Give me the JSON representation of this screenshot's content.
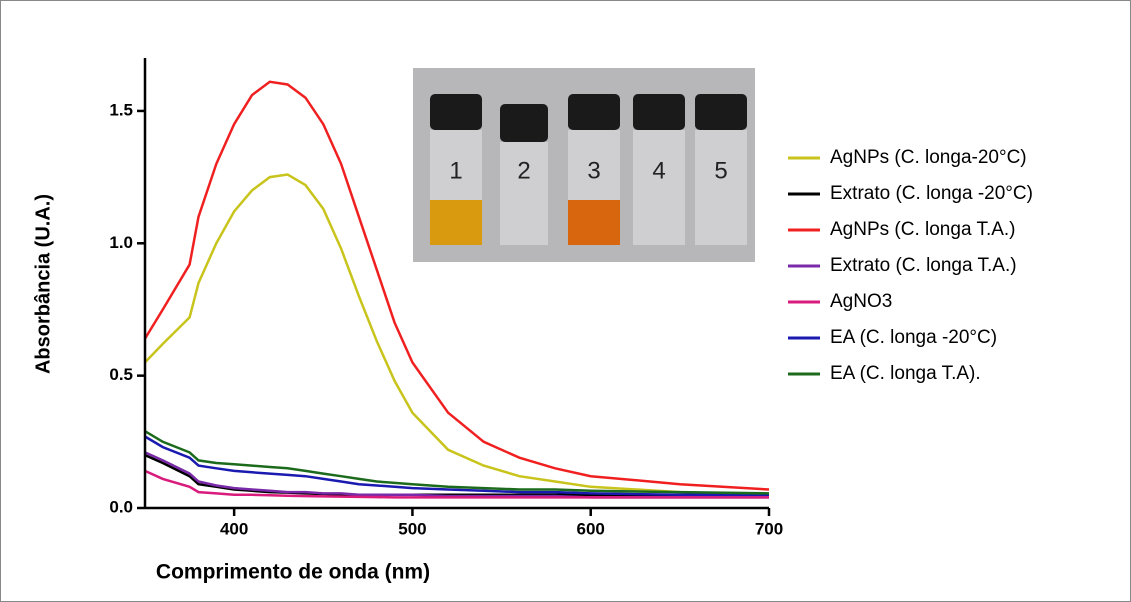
{
  "chart_data": {
    "type": "line",
    "x_label": "Comprimento de onda (nm)",
    "y_label": "Absorbância (U.A.)",
    "x": [
      350,
      360,
      375,
      380,
      390,
      400,
      410,
      420,
      430,
      440,
      450,
      460,
      470,
      480,
      490,
      500,
      520,
      540,
      560,
      580,
      600,
      650,
      700
    ],
    "series": [
      {
        "name": "AgNPs (C. longa-20°C)",
        "color": "#c8c41c",
        "values": [
          0.55,
          0.62,
          0.72,
          0.85,
          1.0,
          1.12,
          1.2,
          1.25,
          1.26,
          1.22,
          1.13,
          0.98,
          0.8,
          0.63,
          0.48,
          0.36,
          0.22,
          0.16,
          0.12,
          0.1,
          0.08,
          0.06,
          0.05
        ]
      },
      {
        "name": "Extrato (C. longa -20°C)",
        "color": "#000000",
        "values": [
          0.2,
          0.17,
          0.12,
          0.09,
          0.08,
          0.07,
          0.065,
          0.06,
          0.058,
          0.055,
          0.053,
          0.05,
          0.05,
          0.05,
          0.05,
          0.05,
          0.05,
          0.05,
          0.05,
          0.05,
          0.05,
          0.05,
          0.05
        ]
      },
      {
        "name": "AgNPs (C. longa T.A.)",
        "color": "#f02020",
        "values": [
          0.64,
          0.75,
          0.92,
          1.1,
          1.3,
          1.45,
          1.56,
          1.61,
          1.6,
          1.55,
          1.45,
          1.3,
          1.1,
          0.9,
          0.7,
          0.55,
          0.36,
          0.25,
          0.19,
          0.15,
          0.12,
          0.09,
          0.07
        ]
      },
      {
        "name": "Extrato (C. longa T.A.)",
        "color": "#7a2aa8",
        "values": [
          0.21,
          0.18,
          0.13,
          0.1,
          0.085,
          0.075,
          0.07,
          0.065,
          0.06,
          0.06,
          0.055,
          0.055,
          0.05,
          0.05,
          0.05,
          0.05,
          0.045,
          0.045,
          0.045,
          0.045,
          0.04,
          0.04,
          0.04
        ]
      },
      {
        "name": "AgNO3",
        "color": "#d81b7c",
        "values": [
          0.14,
          0.11,
          0.08,
          0.06,
          0.055,
          0.05,
          0.05,
          0.048,
          0.046,
          0.045,
          0.044,
          0.043,
          0.042,
          0.041,
          0.04,
          0.04,
          0.04,
          0.04,
          0.04,
          0.04,
          0.04,
          0.04,
          0.04
        ]
      },
      {
        "name": "EA (C. longa -20°C)",
        "color": "#1a1ab0",
        "values": [
          0.27,
          0.23,
          0.19,
          0.16,
          0.15,
          0.14,
          0.135,
          0.13,
          0.125,
          0.12,
          0.11,
          0.1,
          0.09,
          0.085,
          0.08,
          0.075,
          0.07,
          0.065,
          0.06,
          0.06,
          0.055,
          0.05,
          0.05
        ]
      },
      {
        "name": "EA (C. longa T.A).",
        "color": "#1c6a1c",
        "values": [
          0.29,
          0.25,
          0.21,
          0.18,
          0.17,
          0.165,
          0.16,
          0.155,
          0.15,
          0.14,
          0.13,
          0.12,
          0.11,
          0.1,
          0.095,
          0.09,
          0.08,
          0.075,
          0.07,
          0.07,
          0.065,
          0.06,
          0.055
        ]
      }
    ],
    "xlim": [
      350,
      700
    ],
    "xticks": [
      400,
      500,
      600,
      700
    ],
    "ylim": [
      0,
      1.7
    ],
    "yticks": [
      {
        "value": 0,
        "label": "0.0"
      },
      0.5,
      {
        "value": 1,
        "label": "1.0"
      },
      1.5
    ],
    "legend": "right",
    "inset_labels": [
      "1",
      "2",
      "3",
      "4",
      "5"
    ]
  }
}
